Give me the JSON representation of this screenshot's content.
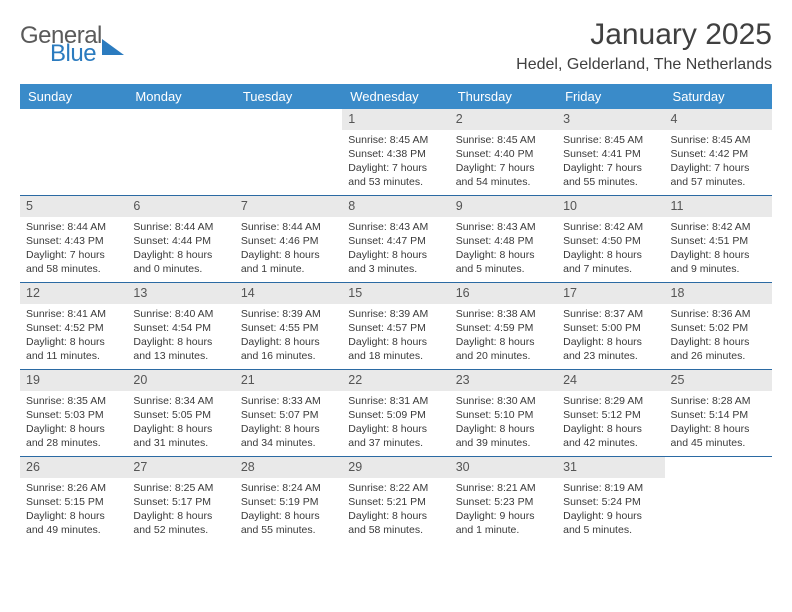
{
  "brand": {
    "word1": "General",
    "word2": "Blue",
    "triangle_color": "#2b7bbf"
  },
  "title": "January 2025",
  "location": "Hedel, Gelderland, The Netherlands",
  "colors": {
    "header_bg": "#3a8bc9",
    "header_text": "#ffffff",
    "daynum_bg": "#e9e9e9",
    "week_border": "#2b6aa3",
    "body_text": "#3a3a3a"
  },
  "day_headers": [
    "Sunday",
    "Monday",
    "Tuesday",
    "Wednesday",
    "Thursday",
    "Friday",
    "Saturday"
  ],
  "weeks": [
    [
      {
        "n": "",
        "sr": "",
        "ss": "",
        "dl1": "",
        "dl2": ""
      },
      {
        "n": "",
        "sr": "",
        "ss": "",
        "dl1": "",
        "dl2": ""
      },
      {
        "n": "",
        "sr": "",
        "ss": "",
        "dl1": "",
        "dl2": ""
      },
      {
        "n": "1",
        "sr": "Sunrise: 8:45 AM",
        "ss": "Sunset: 4:38 PM",
        "dl1": "Daylight: 7 hours",
        "dl2": "and 53 minutes."
      },
      {
        "n": "2",
        "sr": "Sunrise: 8:45 AM",
        "ss": "Sunset: 4:40 PM",
        "dl1": "Daylight: 7 hours",
        "dl2": "and 54 minutes."
      },
      {
        "n": "3",
        "sr": "Sunrise: 8:45 AM",
        "ss": "Sunset: 4:41 PM",
        "dl1": "Daylight: 7 hours",
        "dl2": "and 55 minutes."
      },
      {
        "n": "4",
        "sr": "Sunrise: 8:45 AM",
        "ss": "Sunset: 4:42 PM",
        "dl1": "Daylight: 7 hours",
        "dl2": "and 57 minutes."
      }
    ],
    [
      {
        "n": "5",
        "sr": "Sunrise: 8:44 AM",
        "ss": "Sunset: 4:43 PM",
        "dl1": "Daylight: 7 hours",
        "dl2": "and 58 minutes."
      },
      {
        "n": "6",
        "sr": "Sunrise: 8:44 AM",
        "ss": "Sunset: 4:44 PM",
        "dl1": "Daylight: 8 hours",
        "dl2": "and 0 minutes."
      },
      {
        "n": "7",
        "sr": "Sunrise: 8:44 AM",
        "ss": "Sunset: 4:46 PM",
        "dl1": "Daylight: 8 hours",
        "dl2": "and 1 minute."
      },
      {
        "n": "8",
        "sr": "Sunrise: 8:43 AM",
        "ss": "Sunset: 4:47 PM",
        "dl1": "Daylight: 8 hours",
        "dl2": "and 3 minutes."
      },
      {
        "n": "9",
        "sr": "Sunrise: 8:43 AM",
        "ss": "Sunset: 4:48 PM",
        "dl1": "Daylight: 8 hours",
        "dl2": "and 5 minutes."
      },
      {
        "n": "10",
        "sr": "Sunrise: 8:42 AM",
        "ss": "Sunset: 4:50 PM",
        "dl1": "Daylight: 8 hours",
        "dl2": "and 7 minutes."
      },
      {
        "n": "11",
        "sr": "Sunrise: 8:42 AM",
        "ss": "Sunset: 4:51 PM",
        "dl1": "Daylight: 8 hours",
        "dl2": "and 9 minutes."
      }
    ],
    [
      {
        "n": "12",
        "sr": "Sunrise: 8:41 AM",
        "ss": "Sunset: 4:52 PM",
        "dl1": "Daylight: 8 hours",
        "dl2": "and 11 minutes."
      },
      {
        "n": "13",
        "sr": "Sunrise: 8:40 AM",
        "ss": "Sunset: 4:54 PM",
        "dl1": "Daylight: 8 hours",
        "dl2": "and 13 minutes."
      },
      {
        "n": "14",
        "sr": "Sunrise: 8:39 AM",
        "ss": "Sunset: 4:55 PM",
        "dl1": "Daylight: 8 hours",
        "dl2": "and 16 minutes."
      },
      {
        "n": "15",
        "sr": "Sunrise: 8:39 AM",
        "ss": "Sunset: 4:57 PM",
        "dl1": "Daylight: 8 hours",
        "dl2": "and 18 minutes."
      },
      {
        "n": "16",
        "sr": "Sunrise: 8:38 AM",
        "ss": "Sunset: 4:59 PM",
        "dl1": "Daylight: 8 hours",
        "dl2": "and 20 minutes."
      },
      {
        "n": "17",
        "sr": "Sunrise: 8:37 AM",
        "ss": "Sunset: 5:00 PM",
        "dl1": "Daylight: 8 hours",
        "dl2": "and 23 minutes."
      },
      {
        "n": "18",
        "sr": "Sunrise: 8:36 AM",
        "ss": "Sunset: 5:02 PM",
        "dl1": "Daylight: 8 hours",
        "dl2": "and 26 minutes."
      }
    ],
    [
      {
        "n": "19",
        "sr": "Sunrise: 8:35 AM",
        "ss": "Sunset: 5:03 PM",
        "dl1": "Daylight: 8 hours",
        "dl2": "and 28 minutes."
      },
      {
        "n": "20",
        "sr": "Sunrise: 8:34 AM",
        "ss": "Sunset: 5:05 PM",
        "dl1": "Daylight: 8 hours",
        "dl2": "and 31 minutes."
      },
      {
        "n": "21",
        "sr": "Sunrise: 8:33 AM",
        "ss": "Sunset: 5:07 PM",
        "dl1": "Daylight: 8 hours",
        "dl2": "and 34 minutes."
      },
      {
        "n": "22",
        "sr": "Sunrise: 8:31 AM",
        "ss": "Sunset: 5:09 PM",
        "dl1": "Daylight: 8 hours",
        "dl2": "and 37 minutes."
      },
      {
        "n": "23",
        "sr": "Sunrise: 8:30 AM",
        "ss": "Sunset: 5:10 PM",
        "dl1": "Daylight: 8 hours",
        "dl2": "and 39 minutes."
      },
      {
        "n": "24",
        "sr": "Sunrise: 8:29 AM",
        "ss": "Sunset: 5:12 PM",
        "dl1": "Daylight: 8 hours",
        "dl2": "and 42 minutes."
      },
      {
        "n": "25",
        "sr": "Sunrise: 8:28 AM",
        "ss": "Sunset: 5:14 PM",
        "dl1": "Daylight: 8 hours",
        "dl2": "and 45 minutes."
      }
    ],
    [
      {
        "n": "26",
        "sr": "Sunrise: 8:26 AM",
        "ss": "Sunset: 5:15 PM",
        "dl1": "Daylight: 8 hours",
        "dl2": "and 49 minutes."
      },
      {
        "n": "27",
        "sr": "Sunrise: 8:25 AM",
        "ss": "Sunset: 5:17 PM",
        "dl1": "Daylight: 8 hours",
        "dl2": "and 52 minutes."
      },
      {
        "n": "28",
        "sr": "Sunrise: 8:24 AM",
        "ss": "Sunset: 5:19 PM",
        "dl1": "Daylight: 8 hours",
        "dl2": "and 55 minutes."
      },
      {
        "n": "29",
        "sr": "Sunrise: 8:22 AM",
        "ss": "Sunset: 5:21 PM",
        "dl1": "Daylight: 8 hours",
        "dl2": "and 58 minutes."
      },
      {
        "n": "30",
        "sr": "Sunrise: 8:21 AM",
        "ss": "Sunset: 5:23 PM",
        "dl1": "Daylight: 9 hours",
        "dl2": "and 1 minute."
      },
      {
        "n": "31",
        "sr": "Sunrise: 8:19 AM",
        "ss": "Sunset: 5:24 PM",
        "dl1": "Daylight: 9 hours",
        "dl2": "and 5 minutes."
      },
      {
        "n": "",
        "sr": "",
        "ss": "",
        "dl1": "",
        "dl2": ""
      }
    ]
  ]
}
